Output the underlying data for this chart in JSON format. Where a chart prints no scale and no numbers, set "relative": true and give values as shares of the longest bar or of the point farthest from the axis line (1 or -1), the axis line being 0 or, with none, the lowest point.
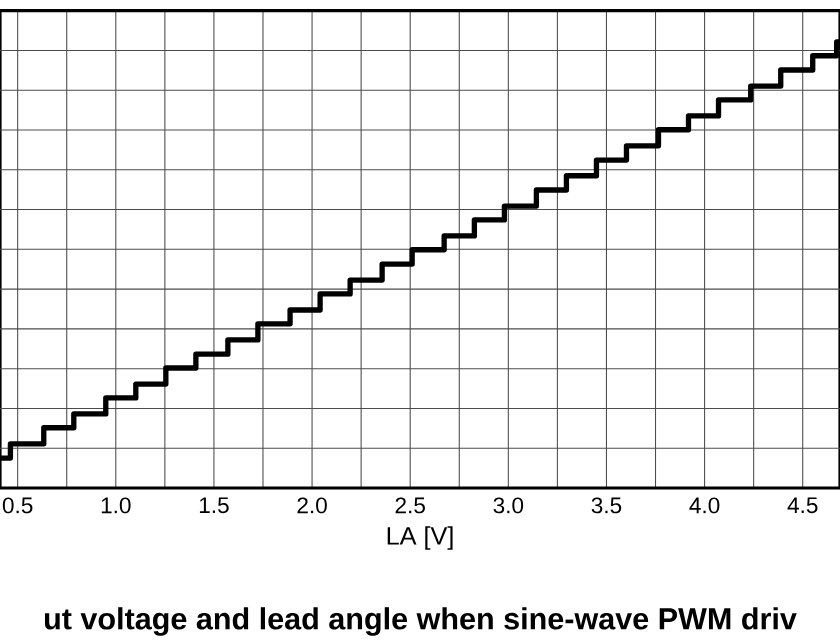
{
  "chart_data": {
    "type": "step",
    "title": "ut voltage and lead angle when sine-wave PWM driv",
    "xlabel": "LA [V]",
    "relative": true,
    "grid": true,
    "x": [
      0.41,
      0.463,
      0.633,
      0.786,
      0.949,
      1.102,
      1.255,
      1.408,
      1.571,
      1.724,
      1.888,
      2.041,
      2.194,
      2.357,
      2.51,
      2.673,
      2.827,
      2.98,
      3.143,
      3.296,
      3.449,
      3.602,
      3.765,
      3.918,
      4.071,
      4.235,
      4.388,
      4.551,
      4.673,
      4.69
    ],
    "series": [
      {
        "color": "#000000",
        "values": [
          0.067,
          0.099,
          0.135,
          0.166,
          0.202,
          0.233,
          0.269,
          0.3,
          0.332,
          0.368,
          0.399,
          0.435,
          0.466,
          0.502,
          0.534,
          0.565,
          0.601,
          0.632,
          0.668,
          0.7,
          0.735,
          0.767,
          0.803,
          0.834,
          0.87,
          0.901,
          0.937,
          0.969,
          1,
          1
        ]
      }
    ],
    "xlim": [
      0.41,
      4.69
    ],
    "xticks": [
      {
        "value": 0.5,
        "label": "0.5"
      },
      {
        "value": 1.0,
        "label": "1.0"
      },
      {
        "value": 1.5,
        "label": "1.5"
      },
      {
        "value": 2.0,
        "label": "2.0"
      },
      {
        "value": 2.5,
        "label": "2.5"
      },
      {
        "value": 3.0,
        "label": "3.0"
      },
      {
        "value": 3.5,
        "label": "3.5"
      },
      {
        "value": 4.0,
        "label": "4.0"
      },
      {
        "value": 4.5,
        "label": "4.5"
      }
    ]
  }
}
